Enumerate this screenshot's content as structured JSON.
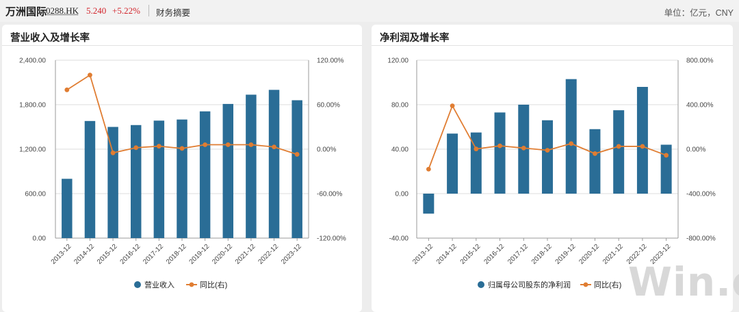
{
  "header": {
    "stock_name": "万洲国际",
    "stock_code": "0288.HK",
    "price": "5.240",
    "change": "+5.22%",
    "tab_label": "财务摘要",
    "unit_label": "单位：亿元，CNY"
  },
  "watermark": "Win.d",
  "colors": {
    "bar": "#2a6d96",
    "line": "#e07d32",
    "grid": "#dddddd",
    "axis": "#999999"
  },
  "chart_data": [
    {
      "type": "bar",
      "title": "营业收入及增长率",
      "categories": [
        "2013-12",
        "2014-12",
        "2015-12",
        "2016-12",
        "2017-12",
        "2018-12",
        "2019-12",
        "2020-12",
        "2021-12",
        "2022-12",
        "2023-12"
      ],
      "series": [
        {
          "name": "营业收入",
          "axis": "left",
          "type": "bar",
          "values": [
            800,
            1580,
            1500,
            1525,
            1585,
            1600,
            1710,
            1810,
            1935,
            2000,
            1860
          ]
        },
        {
          "name": "同比(右)",
          "axis": "right",
          "type": "line",
          "values": [
            80,
            100,
            -5,
            2,
            4,
            1,
            6,
            6,
            6,
            3,
            -7
          ]
        }
      ],
      "left_axis": {
        "min": 0,
        "max": 2400,
        "ticks": [
          "0.00",
          "600.00",
          "1,200.00",
          "1,800.00",
          "2,400.00"
        ]
      },
      "right_axis": {
        "min": -120,
        "max": 120,
        "ticks": [
          "-120.00%",
          "-60.00%",
          "0.00%",
          "60.00%",
          "120.00%"
        ]
      },
      "legend": [
        "营业收入",
        "同比(右)"
      ],
      "grid": true
    },
    {
      "type": "bar",
      "title": "净利润及增长率",
      "categories": [
        "2013-12",
        "2014-12",
        "2015-12",
        "2016-12",
        "2017-12",
        "2018-12",
        "2019-12",
        "2020-12",
        "2021-12",
        "2022-12",
        "2023-12"
      ],
      "series": [
        {
          "name": "归属母公司股东的净利润",
          "axis": "left",
          "type": "bar",
          "values": [
            -18,
            54,
            55,
            73,
            80,
            66,
            103,
            58,
            75,
            96,
            44
          ]
        },
        {
          "name": "同比(右)",
          "axis": "right",
          "type": "line",
          "values": [
            -180,
            390,
            2,
            30,
            10,
            -10,
            50,
            -40,
            25,
            25,
            -55
          ]
        }
      ],
      "left_axis": {
        "min": -40,
        "max": 120,
        "ticks": [
          "-40.00",
          "0.00",
          "40.00",
          "80.00",
          "120.00"
        ]
      },
      "right_axis": {
        "min": -800,
        "max": 800,
        "ticks": [
          "-800.00%",
          "-400.00%",
          "0.00%",
          "400.00%",
          "800.00%"
        ]
      },
      "legend": [
        "归属母公司股东的净利润",
        "同比(右)"
      ],
      "grid": true
    }
  ]
}
